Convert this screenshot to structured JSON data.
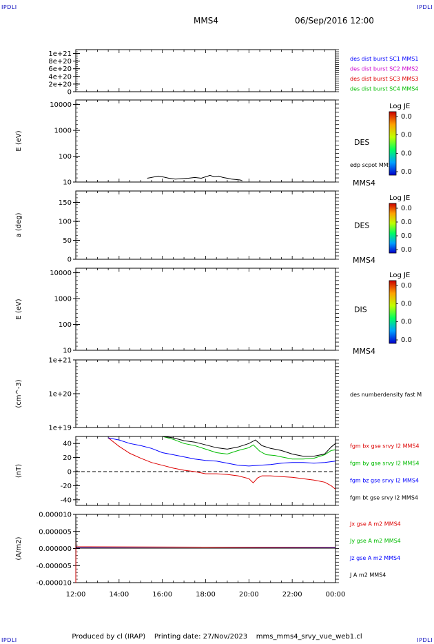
{
  "corner_label": "IPDLI",
  "header": {
    "title": "MMS4",
    "date": "06/Sep/2016 12:00"
  },
  "footer": {
    "produced": "Produced by cl (IRAP)",
    "printing": "Printing date: 27/Nov/2023",
    "name": "mms_mms4_srvy_vue_web1.cl"
  },
  "x_ticks": [
    "12:00",
    "14:00",
    "16:00",
    "18:00",
    "20:00",
    "22:00",
    "00:00"
  ],
  "colors": {
    "black": "#000000",
    "blue": "#0000ff",
    "magenta": "#cc00cc",
    "red": "#dd0000",
    "green": "#00bb00"
  },
  "chart_data": [
    {
      "type": "line",
      "ylabel": "",
      "yticks": [
        "1e+21",
        "8e+20",
        "6e+20",
        "4e+20",
        "2e+20",
        "0"
      ],
      "ylim": [
        0,
        1.1e+21
      ],
      "reference_line": 0,
      "legend": [
        {
          "text": "des dist burst SC1 MMS1",
          "color": "#0000ff"
        },
        {
          "text": "des dist burst SC2 MMS2",
          "color": "#cc00cc"
        },
        {
          "text": "des dist burst SC3 MMS3",
          "color": "#dd0000"
        },
        {
          "text": "des dist burst SC4 MMS4",
          "color": "#00bb00"
        }
      ],
      "series": []
    },
    {
      "type": "line",
      "ylabel": "E (eV)",
      "yscale": "log",
      "yticks": [
        "10000",
        "1000",
        "100",
        "10"
      ],
      "ylim": [
        10,
        15000
      ],
      "spectrogram_label": "DES",
      "spacecraft": "MMS4",
      "legend": [
        {
          "text": "edp scpot MMS4",
          "color": "#000000"
        }
      ],
      "colorbar": {
        "title": "Log JE",
        "labels": [
          "0.0",
          "0.0",
          "0.0",
          "0.0"
        ]
      },
      "series": [
        {
          "name": "edp scpot MMS4",
          "color": "#000000",
          "x": [
            15.3,
            15.5,
            15.8,
            16.0,
            16.3,
            16.6,
            16.9,
            17.2,
            17.5,
            17.8,
            18.0,
            18.2,
            18.4,
            18.6,
            18.8,
            19.0,
            19.2,
            19.4,
            19.6,
            19.7
          ],
          "y": [
            14,
            15,
            17,
            16,
            14,
            13,
            13.5,
            14,
            15,
            14,
            16,
            18,
            16,
            17,
            15,
            14,
            13,
            12.5,
            12,
            11
          ]
        }
      ]
    },
    {
      "type": "heatmap",
      "ylabel": "a (deg)",
      "yticks": [
        "150",
        "100",
        "50",
        "0"
      ],
      "ylim": [
        0,
        180
      ],
      "spectrogram_label": "DES",
      "spacecraft": "MMS4",
      "colorbar": {
        "title": "Log JE",
        "labels": [
          "0.0",
          "0.0",
          "0.0",
          "0.0"
        ]
      }
    },
    {
      "type": "heatmap",
      "ylabel": "E (eV)",
      "yscale": "log",
      "yticks": [
        "10000",
        "1000",
        "100",
        "10"
      ],
      "ylim": [
        10,
        15000
      ],
      "spectrogram_label": "DIS",
      "spacecraft": "MMS4",
      "colorbar": {
        "title": "Log JE",
        "labels": [
          "0.0",
          "0.0",
          "0.0",
          "0.0"
        ]
      }
    },
    {
      "type": "line",
      "ylabel": "(cm^-3)",
      "yscale": "log",
      "yticks": [
        "1e+21",
        "1e+20",
        "1e+19"
      ],
      "ylim": [
        1e+19,
        1e+21
      ],
      "legend": [
        {
          "text": "des numberdensity fast M",
          "color": "#000000"
        }
      ],
      "series": []
    },
    {
      "type": "line",
      "ylabel": "(nT)",
      "yticks": [
        "40",
        "20",
        "0",
        "-20",
        "-40"
      ],
      "ylim": [
        -48,
        50
      ],
      "reference_line": 0,
      "legend": [
        {
          "text": "fgm bx gse srvy l2 MMS4",
          "color": "#dd0000"
        },
        {
          "text": "fgm by gse srvy l2 MMS4",
          "color": "#00bb00"
        },
        {
          "text": "fgm bz gse srvy l2 MMS4",
          "color": "#0000ff"
        },
        {
          "text": "fgm bt gse srvy l2 MMS4",
          "color": "#000000"
        }
      ],
      "series": [
        {
          "name": "fgm bx gse srvy l2 MMS4",
          "color": "#dd0000",
          "x": [
            13.5,
            14.0,
            14.5,
            15.0,
            15.5,
            16.0,
            16.5,
            17.0,
            17.5,
            18.0,
            18.5,
            19.0,
            19.5,
            20.0,
            20.2,
            20.4,
            20.6,
            21.0,
            21.5,
            22.0,
            22.5,
            23.0,
            23.5,
            23.8,
            24.0
          ],
          "y": [
            48,
            36,
            26,
            19,
            13,
            9,
            5,
            2,
            0,
            -3,
            -3,
            -4,
            -6,
            -10,
            -16,
            -9,
            -6,
            -6,
            -7,
            -8,
            -10,
            -12,
            -15,
            -20,
            -25
          ]
        },
        {
          "name": "fgm by gse srvy l2 MMS4",
          "color": "#00bb00",
          "x": [
            16.0,
            16.5,
            17.0,
            17.5,
            18.0,
            18.5,
            19.0,
            19.5,
            20.0,
            20.2,
            20.5,
            20.8,
            21.2,
            21.5,
            22.0,
            22.5,
            23.0,
            23.5,
            23.8,
            24.0
          ],
          "y": [
            50,
            46,
            40,
            37,
            32,
            27,
            25,
            30,
            34,
            38,
            29,
            24,
            23,
            21,
            18,
            18,
            19,
            24,
            30,
            31
          ]
        },
        {
          "name": "fgm bz gse srvy l2 MMS4",
          "color": "#0000ff",
          "x": [
            13.5,
            14.0,
            14.5,
            15.0,
            15.5,
            16.0,
            16.5,
            17.0,
            17.5,
            18.0,
            18.5,
            19.0,
            19.5,
            20.0,
            20.5,
            21.0,
            21.5,
            22.0,
            22.5,
            23.0,
            23.5,
            24.0
          ],
          "y": [
            48,
            45,
            40,
            37,
            33,
            27,
            24,
            21,
            18,
            16,
            15,
            12,
            9,
            8,
            9,
            10,
            12,
            13,
            13,
            12,
            13,
            15
          ]
        },
        {
          "name": "fgm bt gse srvy l2 MMS4",
          "color": "#000000",
          "x": [
            16.0,
            16.5,
            17.0,
            17.5,
            18.0,
            18.5,
            19.0,
            19.5,
            20.0,
            20.3,
            20.6,
            21.0,
            21.5,
            22.0,
            22.5,
            23.0,
            23.5,
            23.8,
            24.0
          ],
          "y": [
            50,
            48,
            44,
            42,
            38,
            34,
            32,
            35,
            40,
            45,
            37,
            33,
            30,
            25,
            22,
            22,
            25,
            35,
            40
          ]
        }
      ]
    },
    {
      "type": "line",
      "ylabel": "(A/m2)",
      "yticks": [
        "0.000010",
        "0.000005",
        "0.000000",
        "-0.000005",
        "-0.000010"
      ],
      "ylim": [
        -1e-05,
        1e-05
      ],
      "legend": [
        {
          "text": "Jx gse A m2 MMS4",
          "color": "#dd0000"
        },
        {
          "text": "Jy gse A m2 MMS4",
          "color": "#00bb00"
        },
        {
          "text": "Jz gse A m2 MMS4",
          "color": "#0000ff"
        },
        {
          "text": "J A m2 MMS4",
          "color": "#000000"
        }
      ],
      "series": [
        {
          "name": "Jx gse A m2 MMS4",
          "color": "#dd0000",
          "x": [
            12.0,
            12.01,
            12.02,
            24.0
          ],
          "y": [
            -1e-05,
            2e-06,
            5e-07,
            3e-07
          ]
        },
        {
          "name": "Jz gse A m2 MMS4",
          "color": "#0000ff",
          "x": [
            12.0,
            12.3,
            18.0,
            24.0
          ],
          "y": [
            2e-07,
            2e-07,
            1e-07,
            2e-07
          ]
        },
        {
          "name": "J A m2 MMS4",
          "color": "#000000",
          "x": [
            12.0,
            12.01,
            12.02,
            24.0
          ],
          "y": [
            1e-05,
            1e-06,
            1e-07,
            1e-07
          ]
        }
      ]
    }
  ]
}
